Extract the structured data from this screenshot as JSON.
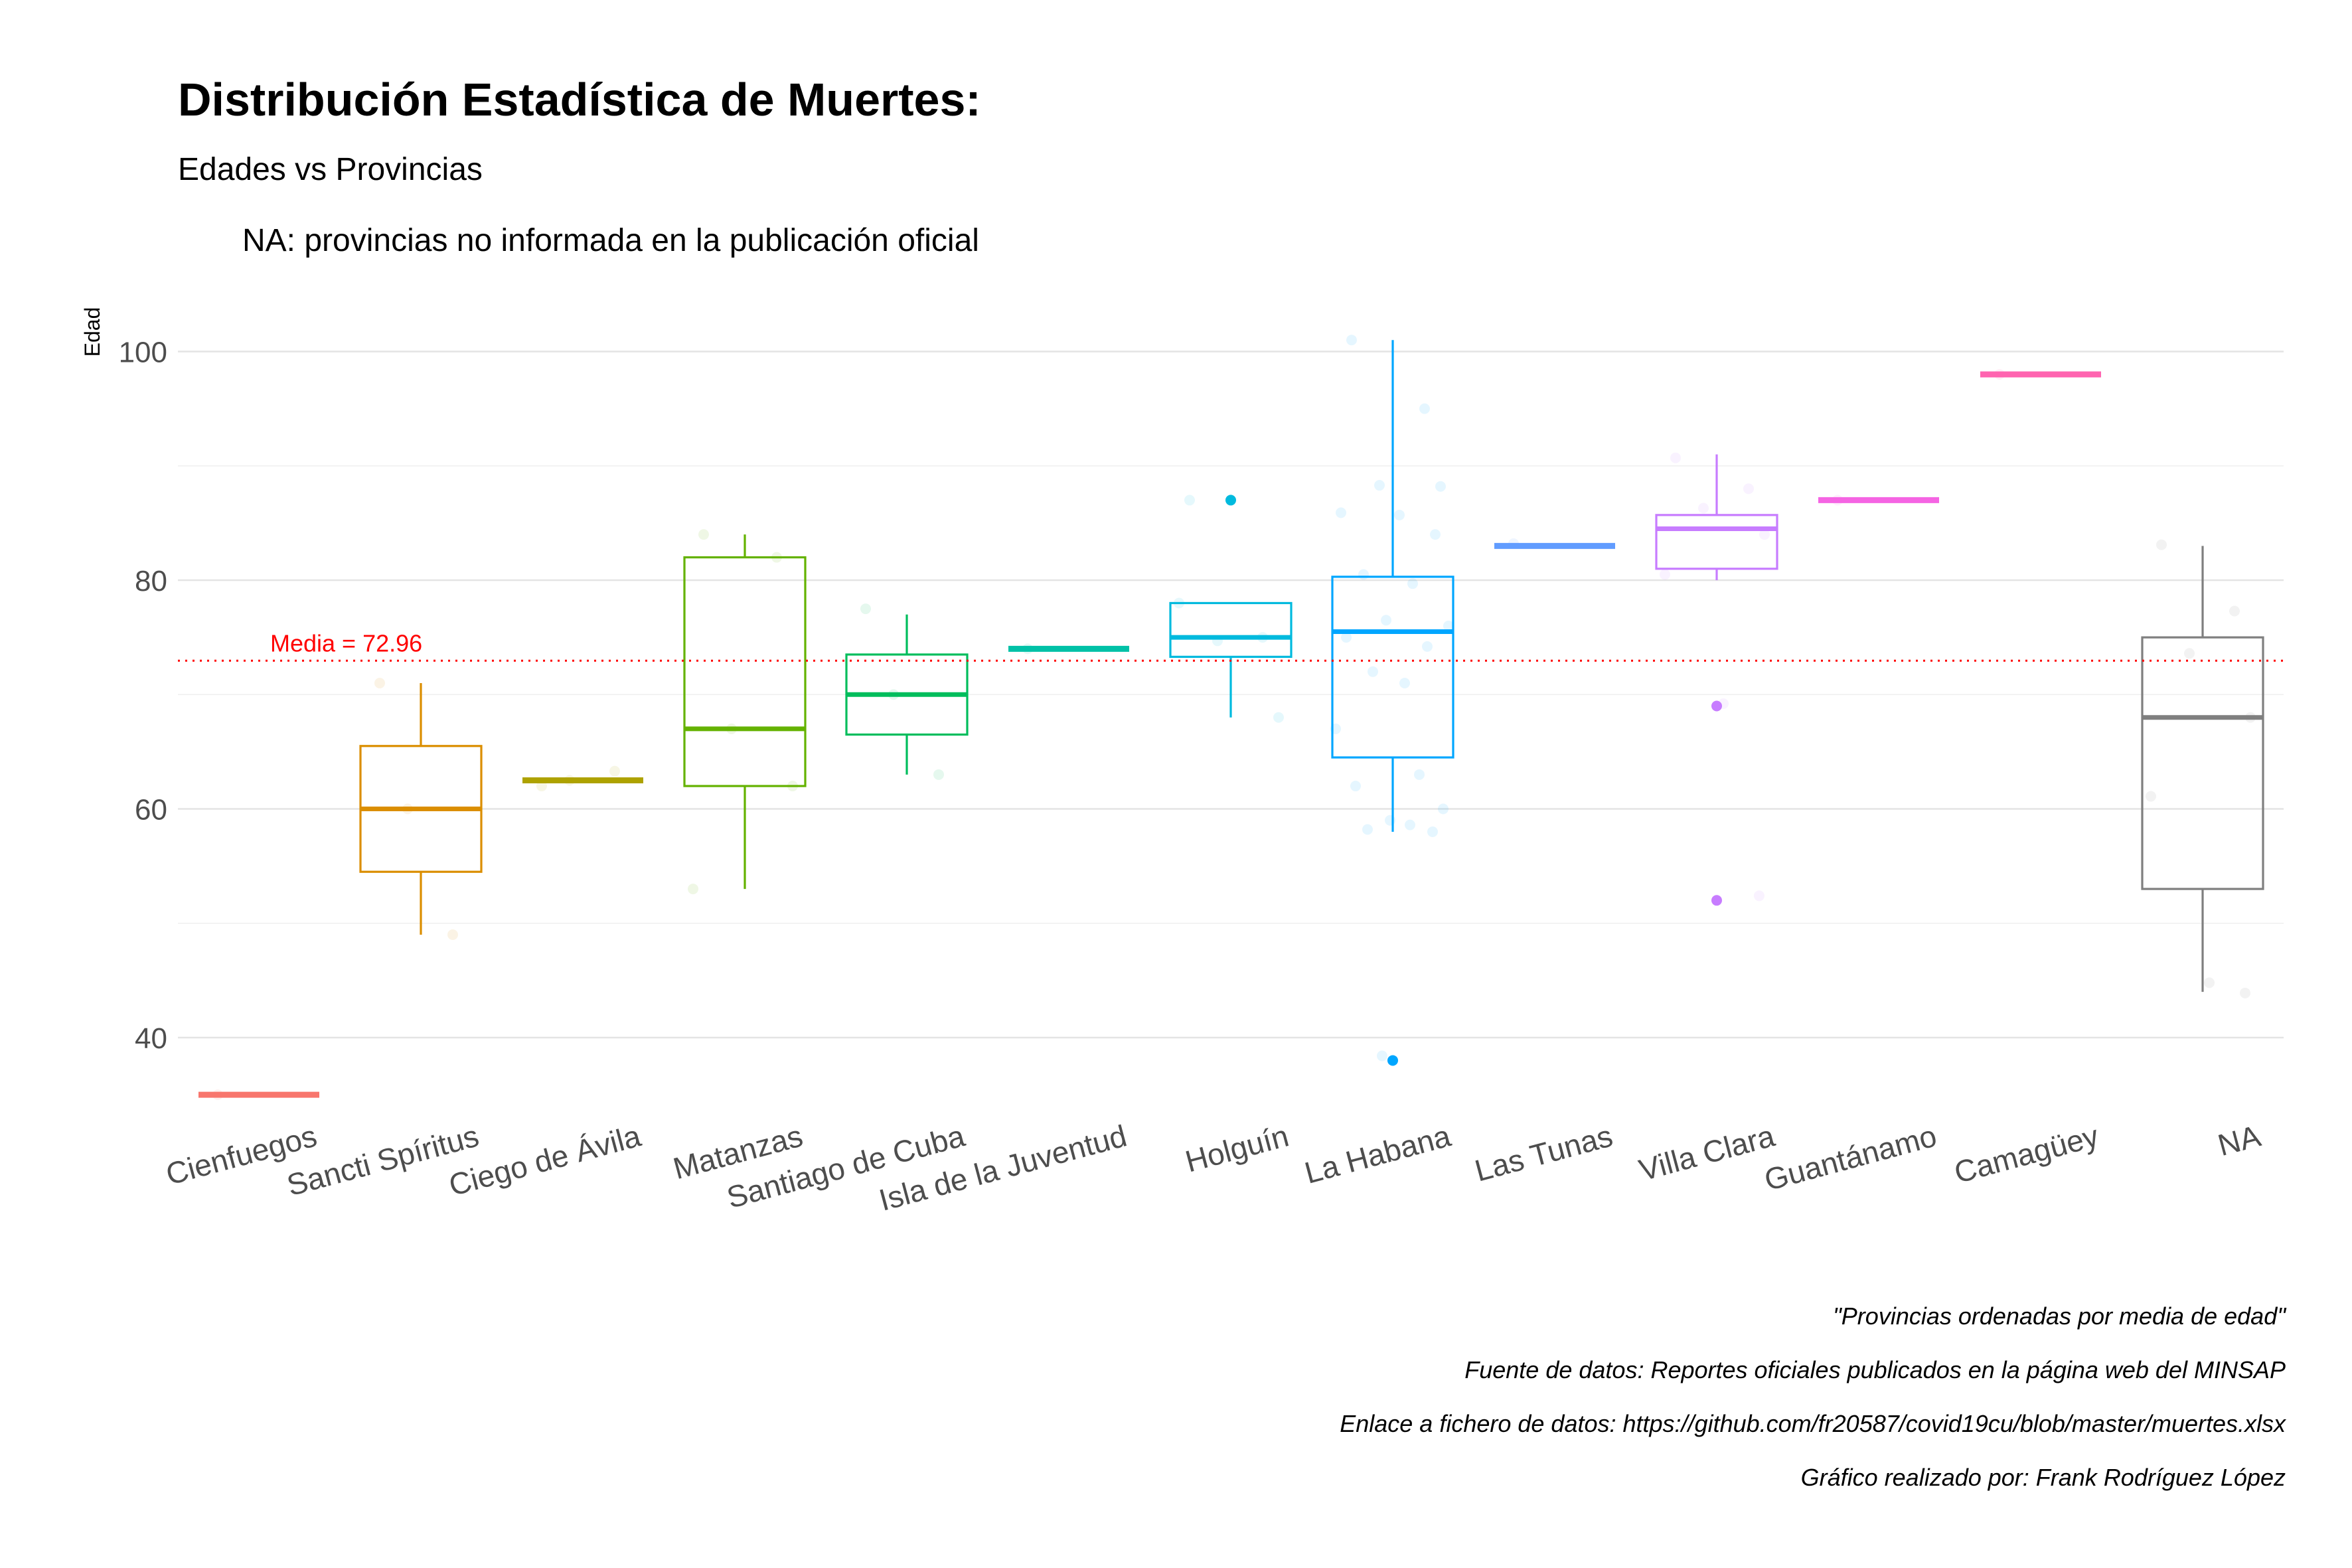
{
  "title": "Distribución Estadística de Muertes:",
  "subtitle": "Edades vs Provincias",
  "note": "NA: provincias no informada en la publicación oficial",
  "captions": [
    "\"Provincias ordenadas por media de edad\"",
    "Fuente de datos: Reportes oficiales publicados en la página web del MINSAP",
    "Enlace a fichero de datos: https://github.com/fr20587/covid19cu/blob/master/muertes.xlsx",
    "Gráfico realizado por: Frank Rodríguez López"
  ],
  "chart_data": {
    "type": "box",
    "title": "Distribución Estadística de Muertes:",
    "subtitle": "Edades vs Provincias",
    "xlabel": "",
    "ylabel": "Edad",
    "ylim": [
      33,
      103
    ],
    "yticks": [
      40,
      60,
      80,
      100
    ],
    "grid": true,
    "mean_line": {
      "value": 72.96,
      "label": "Media = 72.96",
      "color": "#ff0000"
    },
    "categories": [
      "Cienfuegos",
      "Sancti Spíritus",
      "Ciego de Ávila",
      "Matanzas",
      "Santiago de Cuba",
      "Isla de la Juventud",
      "Holguín",
      "La Habana",
      "Las Tunas",
      "Villa Clara",
      "Guantánamo",
      "Camagüey",
      "NA"
    ],
    "colors": [
      "#F8766D",
      "#DB8E00",
      "#AEA200",
      "#64B200",
      "#00BD5C",
      "#00C1A7",
      "#00BADE",
      "#00A6FF",
      "#619CFF",
      "#C77CFF",
      "#F564E3",
      "#FF64B0",
      "#7F7F7F"
    ],
    "boxes": [
      {
        "min": 35,
        "q1": 35,
        "median": 35,
        "q3": 35,
        "max": 35,
        "outliers": [],
        "points": [
          35
        ]
      },
      {
        "min": 49,
        "q1": 54.5,
        "median": 60,
        "q3": 65.5,
        "max": 71,
        "outliers": [],
        "points": [
          71,
          49,
          60
        ]
      },
      {
        "min": 62,
        "q1": 62.3,
        "median": 62.5,
        "q3": 62.8,
        "max": 63,
        "outliers": [],
        "points": [
          62,
          63.3,
          62.5
        ]
      },
      {
        "min": 53,
        "q1": 62,
        "median": 67,
        "q3": 82,
        "max": 84,
        "outliers": [],
        "points": [
          84,
          82,
          67,
          62,
          53
        ]
      },
      {
        "min": 63,
        "q1": 66.5,
        "median": 70,
        "q3": 73.5,
        "max": 77,
        "outliers": [],
        "points": [
          77.5,
          63,
          70
        ]
      },
      {
        "min": 74,
        "q1": 74,
        "median": 74,
        "q3": 74,
        "max": 74,
        "outliers": [],
        "points": [
          74
        ]
      },
      {
        "min": 68,
        "q1": 73.3,
        "median": 75,
        "q3": 78,
        "max": 78,
        "outliers": [
          87
        ],
        "points": [
          87,
          75,
          74.7,
          68,
          78
        ]
      },
      {
        "min": 58,
        "q1": 64.5,
        "median": 75.5,
        "q3": 80.3,
        "max": 101,
        "outliers": [
          38
        ],
        "points": [
          101,
          95,
          88.3,
          88.2,
          85.9,
          85.7,
          84,
          80.5,
          79.7,
          76.5,
          76,
          75,
          74.2,
          72,
          71,
          67,
          63,
          62,
          60,
          59,
          58.6,
          58.2,
          58,
          38.4
        ]
      },
      {
        "min": 83,
        "q1": 83,
        "median": 83,
        "q3": 83,
        "max": 83,
        "outliers": [],
        "points": [
          83.2
        ]
      },
      {
        "min": 80,
        "q1": 81,
        "median": 84.5,
        "q3": 85.7,
        "max": 91,
        "outliers": [
          69,
          52
        ],
        "points": [
          90.7,
          88,
          86.3,
          84,
          80.5,
          69.2,
          52.4
        ]
      },
      {
        "min": 87,
        "q1": 87,
        "median": 87,
        "q3": 87,
        "max": 87,
        "outliers": [],
        "points": [
          87
        ]
      },
      {
        "min": 98,
        "q1": 98,
        "median": 98,
        "q3": 98,
        "max": 98,
        "outliers": [],
        "points": [
          98
        ]
      },
      {
        "min": 44,
        "q1": 53,
        "median": 68,
        "q3": 75,
        "max": 83,
        "outliers": [],
        "points": [
          83.1,
          77.3,
          73.6,
          68,
          61.1,
          44.8,
          43.9
        ]
      }
    ]
  }
}
